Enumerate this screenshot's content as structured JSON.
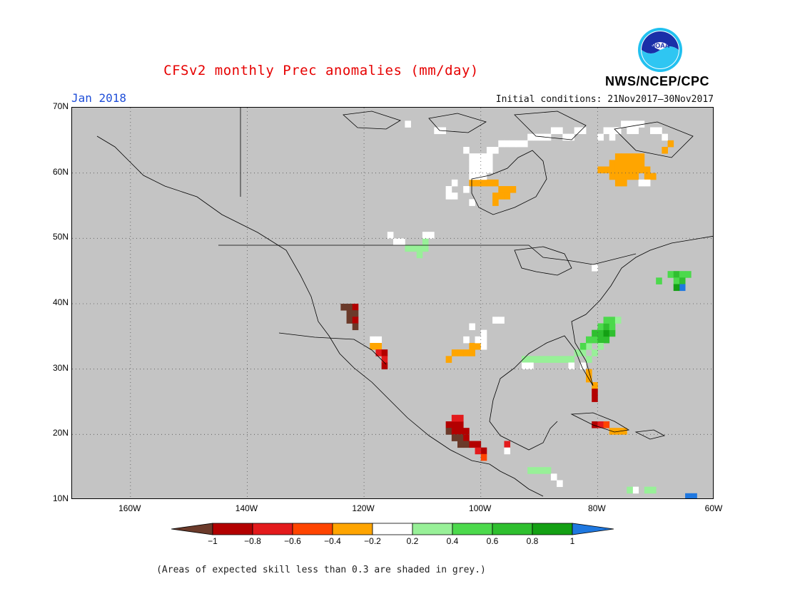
{
  "title": "CFSv2 monthly Prec anomalies (mm/day)",
  "month": "Jan 2018",
  "initial_conditions": "Initial conditions: 21Nov2017–30Nov2017",
  "agency": "NWS/NCEP/CPC",
  "logo_text": "NOAA",
  "footnote": "(Areas of expected skill less than 0.3 are shaded in grey.)",
  "map": {
    "lon_range": [
      -170,
      -60
    ],
    "lat_range": [
      10,
      70
    ],
    "lat_labels": [
      "70N",
      "60N",
      "50N",
      "40N",
      "30N",
      "20N",
      "10N"
    ],
    "lon_labels": [
      "160W",
      "140W",
      "120W",
      "100W",
      "80W",
      "60W"
    ],
    "grid": "dotted"
  },
  "colorbar": {
    "labels": [
      "−1",
      "−0.8",
      "−0.6",
      "−0.4",
      "−0.2",
      "0.2",
      "0.4",
      "0.6",
      "0.8",
      "1"
    ],
    "colors": [
      "#6b3a2a",
      "#b30000",
      "#e31a1c",
      "#ff4500",
      "#ffa500",
      "#ffffff",
      "#98f098",
      "#4cd94c",
      "#2fbf2f",
      "#14a014",
      "#1f78e0"
    ]
  },
  "anomaly_cells": [
    {
      "lon": -123.5,
      "lat": 39.5,
      "cat": 0
    },
    {
      "lon": -122.5,
      "lat": 39.5,
      "cat": 0
    },
    {
      "lon": -121.5,
      "lat": 39.5,
      "cat": 1
    },
    {
      "lon": -122.5,
      "lat": 38.5,
      "cat": 0
    },
    {
      "lon": -121.5,
      "lat": 38.5,
      "cat": 0
    },
    {
      "lon": -122.5,
      "lat": 37.5,
      "cat": 0
    },
    {
      "lon": -121.5,
      "lat": 37.5,
      "cat": 1
    },
    {
      "lon": -121.5,
      "lat": 36.5,
      "cat": 0
    },
    {
      "lon": -118.5,
      "lat": 34.5,
      "cat": 5
    },
    {
      "lon": -117.5,
      "lat": 34.5,
      "cat": 5
    },
    {
      "lon": -118.5,
      "lat": 33.5,
      "cat": 4
    },
    {
      "lon": -117.5,
      "lat": 33.5,
      "cat": 4
    },
    {
      "lon": -117.5,
      "lat": 32.5,
      "cat": 2
    },
    {
      "lon": -116.5,
      "lat": 32.5,
      "cat": 1
    },
    {
      "lon": -116.5,
      "lat": 31.5,
      "cat": 2
    },
    {
      "lon": -116.5,
      "lat": 30.5,
      "cat": 1
    },
    {
      "lon": -105.5,
      "lat": 21.5,
      "cat": 1
    },
    {
      "lon": -104.5,
      "lat": 21.5,
      "cat": 1
    },
    {
      "lon": -103.5,
      "lat": 21.5,
      "cat": 1
    },
    {
      "lon": -105.5,
      "lat": 20.5,
      "cat": 0
    },
    {
      "lon": -104.5,
      "lat": 20.5,
      "cat": 1
    },
    {
      "lon": -103.5,
      "lat": 20.5,
      "cat": 1
    },
    {
      "lon": -102.5,
      "lat": 20.5,
      "cat": 1
    },
    {
      "lon": -104.5,
      "lat": 19.5,
      "cat": 0
    },
    {
      "lon": -103.5,
      "lat": 19.5,
      "cat": 0
    },
    {
      "lon": -102.5,
      "lat": 19.5,
      "cat": 1
    },
    {
      "lon": -103.5,
      "lat": 18.5,
      "cat": 0
    },
    {
      "lon": -102.5,
      "lat": 18.5,
      "cat": 0
    },
    {
      "lon": -101.5,
      "lat": 18.5,
      "cat": 1
    },
    {
      "lon": -100.5,
      "lat": 18.5,
      "cat": 1
    },
    {
      "lon": -99.5,
      "lat": 17.5,
      "cat": 1
    },
    {
      "lon": -100.5,
      "lat": 17.5,
      "cat": 2
    },
    {
      "lon": -99.5,
      "lat": 16.5,
      "cat": 3
    },
    {
      "lon": -95.5,
      "lat": 18.5,
      "cat": 2
    },
    {
      "lon": -104.5,
      "lat": 22.5,
      "cat": 2
    },
    {
      "lon": -103.5,
      "lat": 22.5,
      "cat": 2
    },
    {
      "lon": -105.5,
      "lat": 31.5,
      "cat": 4
    },
    {
      "lon": -104.5,
      "lat": 32.5,
      "cat": 4
    },
    {
      "lon": -103.5,
      "lat": 32.5,
      "cat": 4
    },
    {
      "lon": -102.5,
      "lat": 32.5,
      "cat": 4
    },
    {
      "lon": -101.5,
      "lat": 32.5,
      "cat": 4
    },
    {
      "lon": -100.5,
      "lat": 33.5,
      "cat": 4
    },
    {
      "lon": -101.5,
      "lat": 33.5,
      "cat": 4
    },
    {
      "lon": -102.5,
      "lat": 34.5,
      "cat": 5
    },
    {
      "lon": -100.5,
      "lat": 34.5,
      "cat": 5
    },
    {
      "lon": -99.5,
      "lat": 34.5,
      "cat": 5
    },
    {
      "lon": -99.5,
      "lat": 35.5,
      "cat": 5
    },
    {
      "lon": -101.5,
      "lat": 36.5,
      "cat": 5
    },
    {
      "lon": -99.5,
      "lat": 33.5,
      "cat": 5
    },
    {
      "lon": -81.5,
      "lat": 29.5,
      "cat": 4
    },
    {
      "lon": -81.5,
      "lat": 28.5,
      "cat": 4
    },
    {
      "lon": -80.5,
      "lat": 27.5,
      "cat": 4
    },
    {
      "lon": -80.5,
      "lat": 26.5,
      "cat": 1
    },
    {
      "lon": -80.5,
      "lat": 25.5,
      "cat": 1
    },
    {
      "lon": -80.5,
      "lat": 21.5,
      "cat": 1
    },
    {
      "lon": -79.5,
      "lat": 21.5,
      "cat": 2
    },
    {
      "lon": -78.5,
      "lat": 21.5,
      "cat": 3
    },
    {
      "lon": -77.5,
      "lat": 20.5,
      "cat": 4
    },
    {
      "lon": -76.5,
      "lat": 20.5,
      "cat": 4
    },
    {
      "lon": -75.5,
      "lat": 20.5,
      "cat": 4
    },
    {
      "lon": -92.5,
      "lat": 31.5,
      "cat": 6
    },
    {
      "lon": -91.5,
      "lat": 31.5,
      "cat": 6
    },
    {
      "lon": -90.5,
      "lat": 31.5,
      "cat": 6
    },
    {
      "lon": -89.5,
      "lat": 31.5,
      "cat": 6
    },
    {
      "lon": -88.5,
      "lat": 31.5,
      "cat": 6
    },
    {
      "lon": -87.5,
      "lat": 31.5,
      "cat": 6
    },
    {
      "lon": -86.5,
      "lat": 31.5,
      "cat": 6
    },
    {
      "lon": -85.5,
      "lat": 31.5,
      "cat": 6
    },
    {
      "lon": -84.5,
      "lat": 31.5,
      "cat": 6
    },
    {
      "lon": -83.5,
      "lat": 32.5,
      "cat": 6
    },
    {
      "lon": -82.5,
      "lat": 32.5,
      "cat": 6
    },
    {
      "lon": -81.5,
      "lat": 33.5,
      "cat": 6
    },
    {
      "lon": -82.5,
      "lat": 33.5,
      "cat": 7
    },
    {
      "lon": -81.5,
      "lat": 34.5,
      "cat": 7
    },
    {
      "lon": -80.5,
      "lat": 34.5,
      "cat": 7
    },
    {
      "lon": -79.5,
      "lat": 34.5,
      "cat": 8
    },
    {
      "lon": -78.5,
      "lat": 34.5,
      "cat": 8
    },
    {
      "lon": -80.5,
      "lat": 35.5,
      "cat": 8
    },
    {
      "lon": -79.5,
      "lat": 35.5,
      "cat": 8
    },
    {
      "lon": -78.5,
      "lat": 35.5,
      "cat": 9
    },
    {
      "lon": -77.5,
      "lat": 35.5,
      "cat": 8
    },
    {
      "lon": -79.5,
      "lat": 36.5,
      "cat": 7
    },
    {
      "lon": -78.5,
      "lat": 36.5,
      "cat": 8
    },
    {
      "lon": -77.5,
      "lat": 36.5,
      "cat": 7
    },
    {
      "lon": -78.5,
      "lat": 37.5,
      "cat": 7
    },
    {
      "lon": -77.5,
      "lat": 37.5,
      "cat": 7
    },
    {
      "lon": -76.5,
      "lat": 37.5,
      "cat": 6
    },
    {
      "lon": -79.5,
      "lat": 33.5,
      "cat": 6
    },
    {
      "lon": -80.5,
      "lat": 32.5,
      "cat": 6
    },
    {
      "lon": -81.5,
      "lat": 31.5,
      "cat": 6
    },
    {
      "lon": -112.5,
      "lat": 48.5,
      "cat": 6
    },
    {
      "lon": -111.5,
      "lat": 48.5,
      "cat": 6
    },
    {
      "lon": -110.5,
      "lat": 48.5,
      "cat": 6
    },
    {
      "lon": -109.5,
      "lat": 48.5,
      "cat": 6
    },
    {
      "lon": -110.5,
      "lat": 47.5,
      "cat": 6
    },
    {
      "lon": -109.5,
      "lat": 49.5,
      "cat": 6
    },
    {
      "lon": -113.5,
      "lat": 49.5,
      "cat": 5
    },
    {
      "lon": -114.5,
      "lat": 49.5,
      "cat": 5
    },
    {
      "lon": -115.5,
      "lat": 50.5,
      "cat": 5
    },
    {
      "lon": -108.5,
      "lat": 50.5,
      "cat": 5
    },
    {
      "lon": -109.5,
      "lat": 50.5,
      "cat": 5
    },
    {
      "lon": -91.5,
      "lat": 14.5,
      "cat": 6
    },
    {
      "lon": -90.5,
      "lat": 14.5,
      "cat": 6
    },
    {
      "lon": -89.5,
      "lat": 14.5,
      "cat": 6
    },
    {
      "lon": -88.5,
      "lat": 14.5,
      "cat": 6
    },
    {
      "lon": -87.5,
      "lat": 13.5,
      "cat": 5
    },
    {
      "lon": -86.5,
      "lat": 12.5,
      "cat": 5
    },
    {
      "lon": -69.5,
      "lat": 43.5,
      "cat": 7
    },
    {
      "lon": -67.5,
      "lat": 44.5,
      "cat": 7
    },
    {
      "lon": -66.5,
      "lat": 44.5,
      "cat": 8
    },
    {
      "lon": -65.5,
      "lat": 44.5,
      "cat": 7
    },
    {
      "lon": -64.5,
      "lat": 44.5,
      "cat": 7
    },
    {
      "lon": -66.5,
      "lat": 43.5,
      "cat": 7
    },
    {
      "lon": -65.5,
      "lat": 43.5,
      "cat": 8
    },
    {
      "lon": -65.5,
      "lat": 42.5,
      "cat": 10
    },
    {
      "lon": -66.5,
      "lat": 42.5,
      "cat": 9
    },
    {
      "lon": -76.5,
      "lat": 62.5,
      "cat": 4
    },
    {
      "lon": -75.5,
      "lat": 62.5,
      "cat": 4
    },
    {
      "lon": -74.5,
      "lat": 62.5,
      "cat": 4
    },
    {
      "lon": -73.5,
      "lat": 62.5,
      "cat": 4
    },
    {
      "lon": -72.5,
      "lat": 62.5,
      "cat": 4
    },
    {
      "lon": -77.5,
      "lat": 61.5,
      "cat": 4
    },
    {
      "lon": -76.5,
      "lat": 61.5,
      "cat": 4
    },
    {
      "lon": -75.5,
      "lat": 61.5,
      "cat": 4
    },
    {
      "lon": -74.5,
      "lat": 61.5,
      "cat": 4
    },
    {
      "lon": -73.5,
      "lat": 61.5,
      "cat": 4
    },
    {
      "lon": -72.5,
      "lat": 61.5,
      "cat": 4
    },
    {
      "lon": -79.5,
      "lat": 60.5,
      "cat": 4
    },
    {
      "lon": -78.5,
      "lat": 60.5,
      "cat": 4
    },
    {
      "lon": -77.5,
      "lat": 60.5,
      "cat": 4
    },
    {
      "lon": -76.5,
      "lat": 60.5,
      "cat": 4
    },
    {
      "lon": -75.5,
      "lat": 60.5,
      "cat": 4
    },
    {
      "lon": -74.5,
      "lat": 60.5,
      "cat": 4
    },
    {
      "lon": -73.5,
      "lat": 60.5,
      "cat": 4
    },
    {
      "lon": -72.5,
      "lat": 60.5,
      "cat": 4
    },
    {
      "lon": -71.5,
      "lat": 60.5,
      "cat": 4
    },
    {
      "lon": -77.5,
      "lat": 59.5,
      "cat": 4
    },
    {
      "lon": -76.5,
      "lat": 59.5,
      "cat": 4
    },
    {
      "lon": -75.5,
      "lat": 59.5,
      "cat": 4
    },
    {
      "lon": -74.5,
      "lat": 59.5,
      "cat": 4
    },
    {
      "lon": -73.5,
      "lat": 59.5,
      "cat": 4
    },
    {
      "lon": -71.5,
      "lat": 59.5,
      "cat": 4
    },
    {
      "lon": -70.5,
      "lat": 59.5,
      "cat": 4
    },
    {
      "lon": -76.5,
      "lat": 58.5,
      "cat": 4
    },
    {
      "lon": -75.5,
      "lat": 58.5,
      "cat": 4
    },
    {
      "lon": -72.5,
      "lat": 58.5,
      "cat": 5
    },
    {
      "lon": -68.5,
      "lat": 63.5,
      "cat": 4
    },
    {
      "lon": -67.5,
      "lat": 64.5,
      "cat": 4
    },
    {
      "lon": -101.5,
      "lat": 58.5,
      "cat": 4
    },
    {
      "lon": -100.5,
      "lat": 58.5,
      "cat": 4
    },
    {
      "lon": -99.5,
      "lat": 58.5,
      "cat": 4
    },
    {
      "lon": -98.5,
      "lat": 58.5,
      "cat": 4
    },
    {
      "lon": -97.5,
      "lat": 58.5,
      "cat": 4
    },
    {
      "lon": -96.5,
      "lat": 57.5,
      "cat": 4
    },
    {
      "lon": -95.5,
      "lat": 57.5,
      "cat": 4
    },
    {
      "lon": -94.5,
      "lat": 57.5,
      "cat": 4
    },
    {
      "lon": -95.5,
      "lat": 56.5,
      "cat": 4
    },
    {
      "lon": -96.5,
      "lat": 56.5,
      "cat": 4
    },
    {
      "lon": -97.5,
      "lat": 56.5,
      "cat": 4
    },
    {
      "lon": -97.5,
      "lat": 55.5,
      "cat": 4
    },
    {
      "lon": -104.5,
      "lat": 58.5,
      "cat": 5
    },
    {
      "lon": -105.5,
      "lat": 57.5,
      "cat": 5
    },
    {
      "lon": -104.5,
      "lat": 56.5,
      "cat": 5
    },
    {
      "lon": -105.5,
      "lat": 56.5,
      "cat": 5
    },
    {
      "lon": -102.5,
      "lat": 57.5,
      "cat": 5
    },
    {
      "lon": -101.5,
      "lat": 55.5,
      "cat": 5
    },
    {
      "lon": -101.5,
      "lat": 62.5,
      "cat": 5
    },
    {
      "lon": -100.5,
      "lat": 62.5,
      "cat": 5
    },
    {
      "lon": -99.5,
      "lat": 62.5,
      "cat": 5
    },
    {
      "lon": -98.5,
      "lat": 62.5,
      "cat": 5
    },
    {
      "lon": -101.5,
      "lat": 61.5,
      "cat": 5
    },
    {
      "lon": -100.5,
      "lat": 61.5,
      "cat": 5
    },
    {
      "lon": -99.5,
      "lat": 61.5,
      "cat": 5
    },
    {
      "lon": -98.5,
      "lat": 61.5,
      "cat": 5
    },
    {
      "lon": -101.5,
      "lat": 60.5,
      "cat": 5
    },
    {
      "lon": -100.5,
      "lat": 60.5,
      "cat": 5
    },
    {
      "lon": -99.5,
      "lat": 60.5,
      "cat": 5
    },
    {
      "lon": -98.5,
      "lat": 60.5,
      "cat": 5
    },
    {
      "lon": -101.5,
      "lat": 59.5,
      "cat": 5
    },
    {
      "lon": -100.5,
      "lat": 59.5,
      "cat": 5
    },
    {
      "lon": -99.5,
      "lat": 59.5,
      "cat": 5
    },
    {
      "lon": -97.5,
      "lat": 63.5,
      "cat": 5
    },
    {
      "lon": -98.5,
      "lat": 63.5,
      "cat": 5
    },
    {
      "lon": -102.5,
      "lat": 63.5,
      "cat": 5
    },
    {
      "lon": -96.5,
      "lat": 64.5,
      "cat": 5
    },
    {
      "lon": -95.5,
      "lat": 64.5,
      "cat": 5
    },
    {
      "lon": -94.5,
      "lat": 64.5,
      "cat": 5
    },
    {
      "lon": -93.5,
      "lat": 64.5,
      "cat": 5
    },
    {
      "lon": -92.5,
      "lat": 64.5,
      "cat": 5
    },
    {
      "lon": -91.5,
      "lat": 65.5,
      "cat": 5
    },
    {
      "lon": -90.5,
      "lat": 65.5,
      "cat": 5
    },
    {
      "lon": -89.5,
      "lat": 65.5,
      "cat": 5
    },
    {
      "lon": -88.5,
      "lat": 65.5,
      "cat": 5
    },
    {
      "lon": -87.5,
      "lat": 66.5,
      "cat": 5
    },
    {
      "lon": -86.5,
      "lat": 66.5,
      "cat": 5
    },
    {
      "lon": -85.5,
      "lat": 65.5,
      "cat": 5
    },
    {
      "lon": -84.5,
      "lat": 65.5,
      "cat": 5
    },
    {
      "lon": -83.5,
      "lat": 66.5,
      "cat": 5
    },
    {
      "lon": -82.5,
      "lat": 66.5,
      "cat": 5
    },
    {
      "lon": -78.5,
      "lat": 66.5,
      "cat": 5
    },
    {
      "lon": -77.5,
      "lat": 66.5,
      "cat": 5
    },
    {
      "lon": -76.5,
      "lat": 66.5,
      "cat": 5
    },
    {
      "lon": -75.5,
      "lat": 67.5,
      "cat": 5
    },
    {
      "lon": -74.5,
      "lat": 67.5,
      "cat": 5
    },
    {
      "lon": -73.5,
      "lat": 67.5,
      "cat": 5
    },
    {
      "lon": -72.5,
      "lat": 67.5,
      "cat": 5
    },
    {
      "lon": -70.5,
      "lat": 66.5,
      "cat": 5
    },
    {
      "lon": -69.5,
      "lat": 66.5,
      "cat": 5
    },
    {
      "lon": -68.5,
      "lat": 65.5,
      "cat": 5
    },
    {
      "lon": -74.5,
      "lat": 66.5,
      "cat": 5
    },
    {
      "lon": -73.5,
      "lat": 66.5,
      "cat": 5
    },
    {
      "lon": -77.5,
      "lat": 65.5,
      "cat": 5
    },
    {
      "lon": -79.5,
      "lat": 65.5,
      "cat": 5
    },
    {
      "lon": -107.5,
      "lat": 66.5,
      "cat": 5
    },
    {
      "lon": -106.5,
      "lat": 66.5,
      "cat": 5
    },
    {
      "lon": -112.5,
      "lat": 67.5,
      "cat": 5
    },
    {
      "lon": -71.5,
      "lat": 58.5,
      "cat": 5
    },
    {
      "lon": -80.5,
      "lat": 45.5,
      "cat": 5
    },
    {
      "lon": -97.5,
      "lat": 37.5,
      "cat": 5
    },
    {
      "lon": -96.5,
      "lat": 37.5,
      "cat": 5
    },
    {
      "lon": -91.5,
      "lat": 30.5,
      "cat": 5
    },
    {
      "lon": -92.5,
      "lat": 30.5,
      "cat": 5
    },
    {
      "lon": -84.5,
      "lat": 30.5,
      "cat": 5
    },
    {
      "lon": -82.5,
      "lat": 30.5,
      "cat": 5
    },
    {
      "lon": -95.5,
      "lat": 17.5,
      "cat": 5
    },
    {
      "lon": -73.5,
      "lat": 11.5,
      "cat": 5
    },
    {
      "lon": -71.5,
      "lat": 11.5,
      "cat": 6
    },
    {
      "lon": -70.5,
      "lat": 11.5,
      "cat": 6
    },
    {
      "lon": -74.5,
      "lat": 11.5,
      "cat": 6
    },
    {
      "lon": -64.5,
      "lat": 10.5,
      "cat": 10
    },
    {
      "lon": -63.5,
      "lat": 10.5,
      "cat": 10
    }
  ]
}
